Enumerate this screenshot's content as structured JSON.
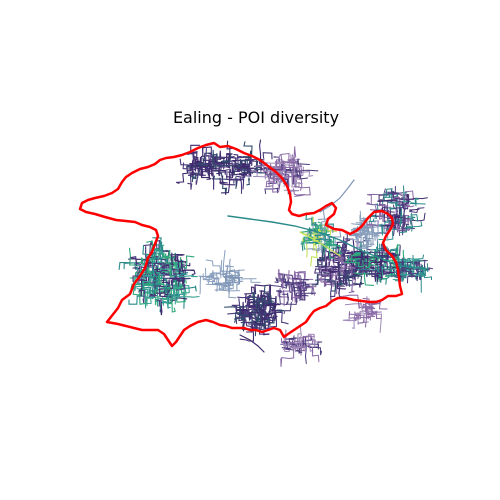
{
  "map": {
    "title": "Ealing - POI diversity",
    "boundary_color": "#ff0000",
    "palette": "viridis",
    "street_colors": {
      "low": "#3f2a6e",
      "low_mid": "#4b3b7c",
      "purple_light": "#8a6aa6",
      "lavender": "#9f88b8",
      "steel_blue": "#8aa0be",
      "blue_grey": "#7f95b5",
      "teal": "#2a8a8a",
      "teal_light": "#3aa396",
      "green": "#2fa87a",
      "yellow_green": "#c5e05a",
      "dark_slate": "#2f4a6a"
    }
  }
}
